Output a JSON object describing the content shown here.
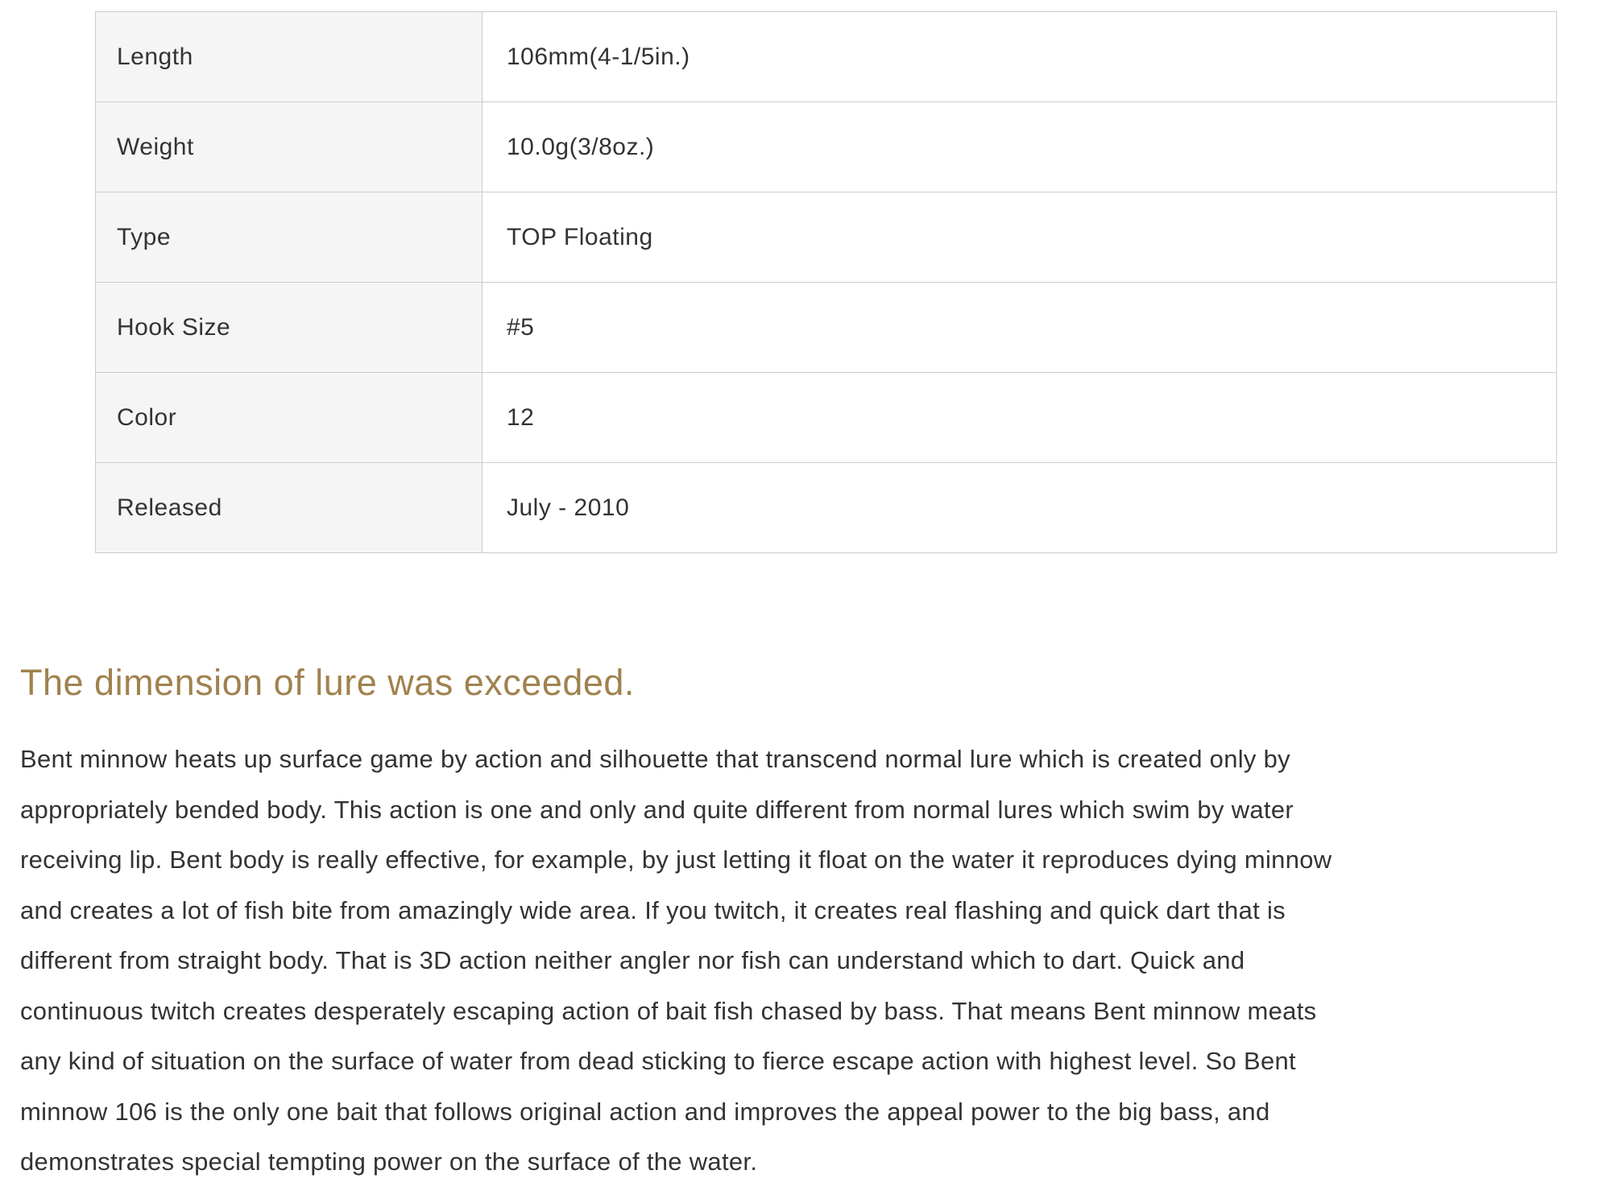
{
  "page": {
    "background": "#ffffff",
    "text_color": "#333333"
  },
  "spec_table": {
    "label_bg": "#f5f5f5",
    "border_color": "#cccccc",
    "rows": [
      {
        "label": "Length",
        "value": "106mm(4-1/5in.)"
      },
      {
        "label": "Weight",
        "value": "10.0g(3/8oz.)"
      },
      {
        "label": "Type",
        "value": "TOP Floating"
      },
      {
        "label": "Hook Size",
        "value": "#5"
      },
      {
        "label": "Color",
        "value": "12"
      },
      {
        "label": "Released",
        "value": "July - 2010"
      }
    ]
  },
  "section": {
    "heading": "The dimension of lure was exceeded.",
    "heading_color": "#a0824e",
    "paragraph_lines": [
      "Bent minnow heats up surface game by action and silhouette that transcend normal lure which is created only by",
      "appropriately bended body. This action is one and only and quite different from normal lures which swim by water",
      "receiving lip. Bent body is really effective, for example, by just letting it float on the water it reproduces dying minnow",
      "and creates a lot of fish bite from amazingly wide area. If you twitch, it creates real flashing and quick dart that is",
      "different from straight body. That is 3D action neither angler nor fish can understand which to dart. Quick and",
      "continuous twitch creates desperately escaping action of bait fish chased by bass. That means Bent minnow meats",
      "any kind of situation on the surface of water from dead sticking to fierce escape action with highest level. So Bent",
      "minnow 106 is the only one bait that follows original action and improves the appeal power to the big bass, and",
      "demonstrates special tempting power on the surface of the water."
    ]
  }
}
